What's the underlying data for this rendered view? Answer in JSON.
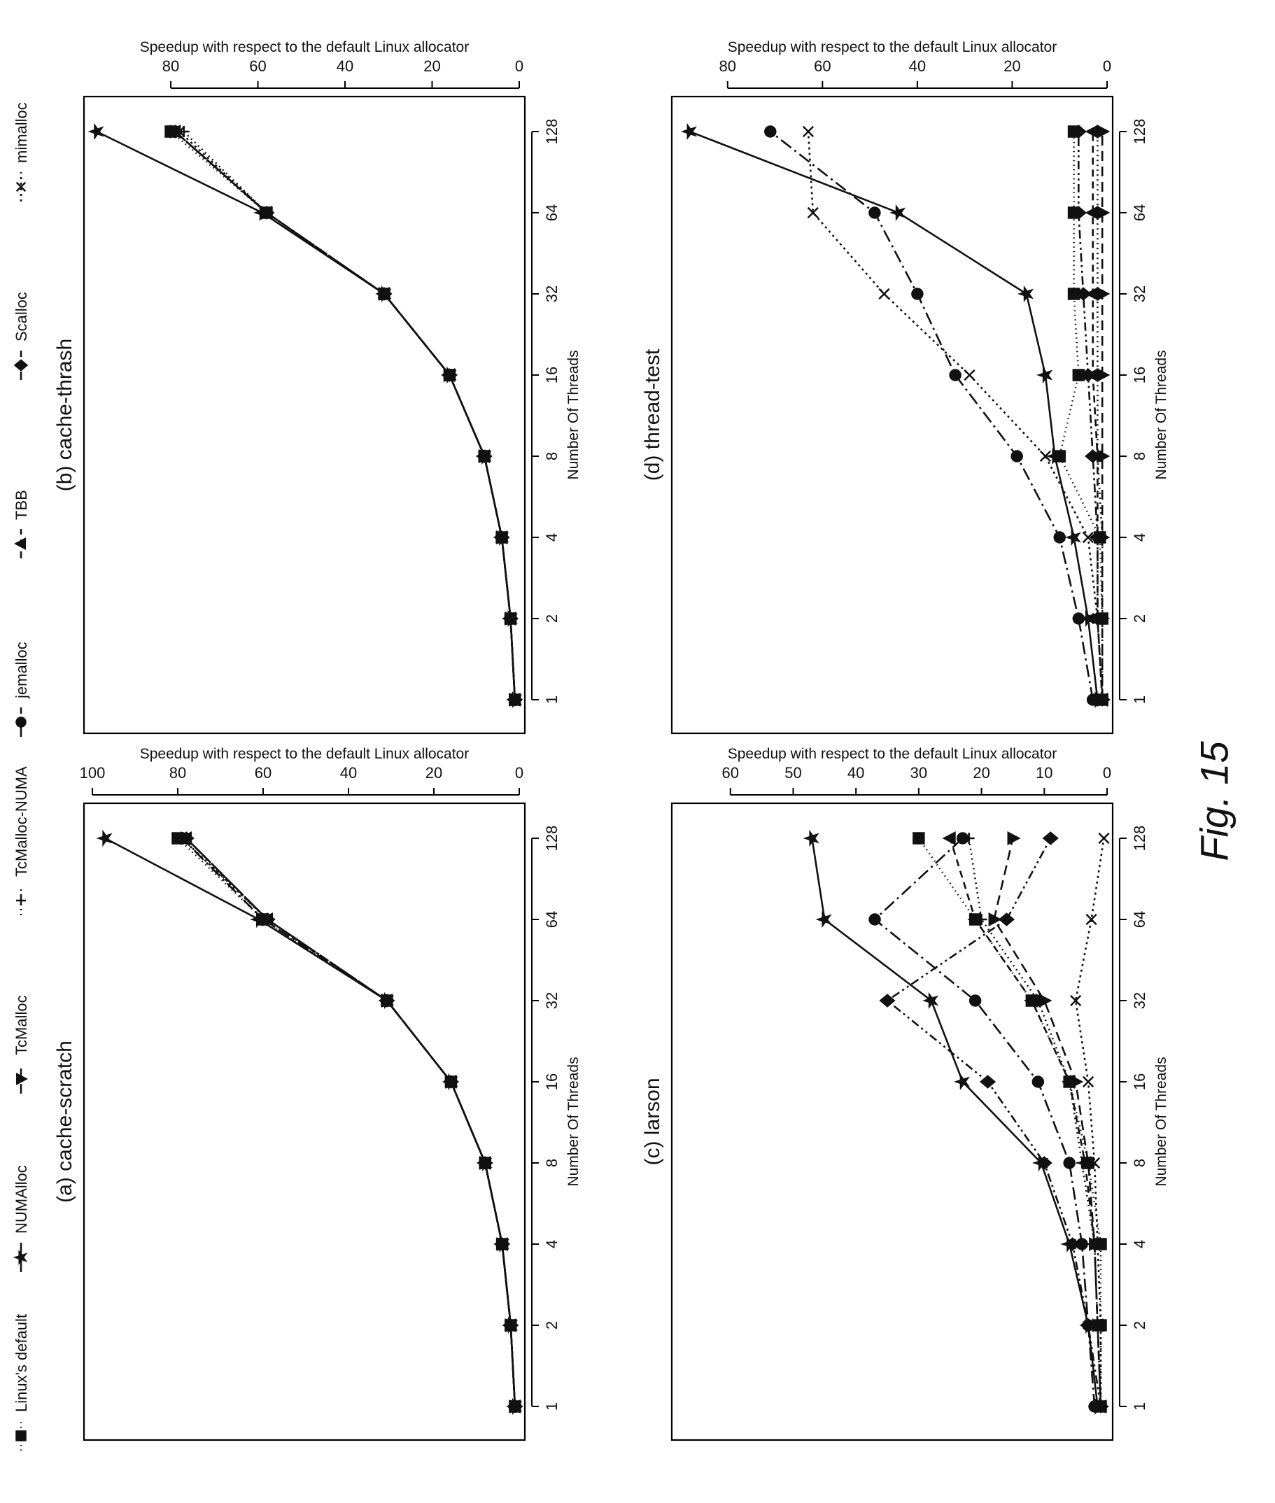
{
  "figure_caption": "Fig. 15",
  "legend": [
    {
      "label": "Linux's default",
      "marker": "square",
      "dash": "1.5,5"
    },
    {
      "label": "NUMAlloc",
      "marker": "star",
      "dash": ""
    },
    {
      "label": "TcMalloc",
      "marker": "triangle-down",
      "dash": "14,8"
    },
    {
      "label": "TcMalloc-NUMA",
      "marker": "plus",
      "dash": "2,5"
    },
    {
      "label": "jemalloc",
      "marker": "circle",
      "dash": "18,6,3,6"
    },
    {
      "label": "TBB",
      "marker": "triangle-up",
      "dash": "10,7"
    },
    {
      "label": "Scalloc",
      "marker": "diamond",
      "dash": "12,5,3,5,3,5"
    },
    {
      "label": "mimalloc",
      "marker": "x",
      "dash": "3,5"
    }
  ],
  "chart_data": [
    {
      "type": "line",
      "title": "(a) cache-scratch",
      "xlabel": "Number Of Threads",
      "ylabel": "Speedup with respect to the default Linux allocator",
      "x": [
        1,
        2,
        4,
        8,
        16,
        32,
        64,
        128
      ],
      "xscale": "log2",
      "ylim": [
        0,
        100
      ],
      "yticks": [
        0,
        20,
        40,
        60,
        80,
        100
      ],
      "series": [
        {
          "name": "Linux's default",
          "values": [
            1,
            2,
            4,
            8,
            16,
            31,
            60,
            80
          ]
        },
        {
          "name": "NUMAlloc",
          "values": [
            1,
            2,
            4,
            8,
            16,
            31,
            61,
            97
          ]
        },
        {
          "name": "TcMalloc",
          "values": [
            1,
            2,
            4,
            8,
            16,
            31,
            59,
            78
          ]
        },
        {
          "name": "TcMalloc-NUMA",
          "values": [
            1,
            2,
            4,
            8,
            16,
            31,
            59,
            79
          ]
        },
        {
          "name": "jemalloc",
          "values": [
            1,
            2,
            4,
            8,
            16,
            31,
            60,
            79
          ]
        },
        {
          "name": "TBB",
          "values": [
            1,
            2,
            4,
            8,
            16,
            31,
            59,
            78
          ]
        },
        {
          "name": "Scalloc",
          "values": [
            1,
            2,
            4,
            8,
            16,
            31,
            59,
            78
          ]
        },
        {
          "name": "mimalloc",
          "values": [
            1,
            2,
            4,
            8,
            16,
            31,
            59,
            79
          ]
        }
      ]
    },
    {
      "type": "line",
      "title": "(b) cache-thrash",
      "xlabel": "Number Of Threads",
      "ylabel": "Speedup with respect to the default Linux allocator",
      "x": [
        1,
        2,
        4,
        8,
        16,
        32,
        64,
        128
      ],
      "xscale": "log2",
      "ylim": [
        0,
        98
      ],
      "yticks": [
        0,
        20,
        40,
        60,
        80
      ],
      "series": [
        {
          "name": "Linux's default",
          "values": [
            1,
            2,
            4,
            8,
            16,
            31,
            58,
            80
          ]
        },
        {
          "name": "NUMAlloc",
          "values": [
            1,
            2,
            4,
            8,
            16,
            31,
            59,
            97
          ]
        },
        {
          "name": "TcMalloc",
          "values": [
            1,
            2,
            4,
            8,
            16,
            31,
            58,
            79
          ]
        },
        {
          "name": "TcMalloc-NUMA",
          "values": [
            1,
            2,
            4,
            8,
            16,
            31,
            58,
            77
          ]
        },
        {
          "name": "jemalloc",
          "values": [
            1,
            2,
            4,
            8,
            16,
            31,
            58,
            79
          ]
        },
        {
          "name": "TBB",
          "values": [
            1,
            2,
            4,
            8,
            16,
            31,
            58,
            79
          ]
        },
        {
          "name": "Scalloc",
          "values": [
            1,
            2,
            4,
            8,
            16,
            31,
            58,
            79
          ]
        },
        {
          "name": "mimalloc",
          "values": [
            1,
            2,
            4,
            8,
            16,
            31,
            58,
            78
          ]
        }
      ]
    },
    {
      "type": "line",
      "title": "(c) larson",
      "xlabel": "Number Of Threads",
      "ylabel": "Speedup with respect to the default Linux allocator",
      "x": [
        1,
        2,
        4,
        8,
        16,
        32,
        64,
        128
      ],
      "xscale": "log2",
      "ylim": [
        0,
        68
      ],
      "yticks": [
        0,
        10,
        20,
        30,
        40,
        50,
        60
      ],
      "series": [
        {
          "name": "Linux's default",
          "values": [
            1,
            1,
            1,
            3,
            6,
            12,
            21,
            30
          ]
        },
        {
          "name": "NUMAlloc",
          "values": [
            1.5,
            3,
            6,
            10.5,
            23,
            28,
            45,
            47
          ]
        },
        {
          "name": "TcMalloc",
          "values": [
            1,
            1.5,
            2,
            3,
            5,
            10,
            18,
            15
          ]
        },
        {
          "name": "TcMalloc-NUMA",
          "values": [
            1,
            1.5,
            2,
            4,
            6,
            11,
            20,
            22
          ]
        },
        {
          "name": "jemalloc",
          "values": [
            2,
            3,
            4,
            6,
            11,
            21,
            37,
            23
          ]
        },
        {
          "name": "TBB",
          "values": [
            1,
            1.5,
            2,
            3.5,
            6,
            12,
            21,
            25
          ]
        },
        {
          "name": "Scalloc",
          "values": [
            1,
            3,
            5.5,
            10,
            19,
            35,
            16,
            9
          ]
        },
        {
          "name": "mimalloc",
          "values": [
            1,
            1,
            1.5,
            2,
            3,
            5,
            2.5,
            0.5
          ]
        }
      ]
    },
    {
      "type": "line",
      "title": "(d) thread-test",
      "xlabel": "Number Of Threads",
      "ylabel": "Speedup with respect to the default Linux allocator",
      "x": [
        1,
        2,
        4,
        8,
        16,
        32,
        64,
        128
      ],
      "xscale": "log2",
      "ylim": [
        0,
        90
      ],
      "yticks": [
        0,
        20,
        40,
        60,
        80
      ],
      "series": [
        {
          "name": "Linux's default",
          "values": [
            1,
            1,
            1.5,
            10,
            6,
            7,
            7,
            7
          ]
        },
        {
          "name": "NUMAlloc",
          "values": [
            2,
            4,
            7,
            11,
            13,
            17,
            44,
            88
          ]
        },
        {
          "name": "TcMalloc",
          "values": [
            1,
            1,
            1,
            1,
            1,
            1,
            1,
            1
          ]
        },
        {
          "name": "TcMalloc-NUMA",
          "values": [
            1,
            1,
            1,
            2,
            2,
            2,
            2,
            2
          ]
        },
        {
          "name": "jemalloc",
          "values": [
            3,
            6,
            10,
            19,
            32,
            40,
            49,
            71
          ]
        },
        {
          "name": "TBB",
          "values": [
            1,
            2,
            2,
            2,
            3,
            3,
            3,
            3
          ]
        },
        {
          "name": "Scalloc",
          "values": [
            1,
            2,
            2,
            3,
            4,
            5,
            6,
            6
          ]
        },
        {
          "name": "mimalloc",
          "values": [
            1,
            2,
            4,
            13,
            29,
            47,
            62,
            63
          ]
        }
      ]
    }
  ]
}
